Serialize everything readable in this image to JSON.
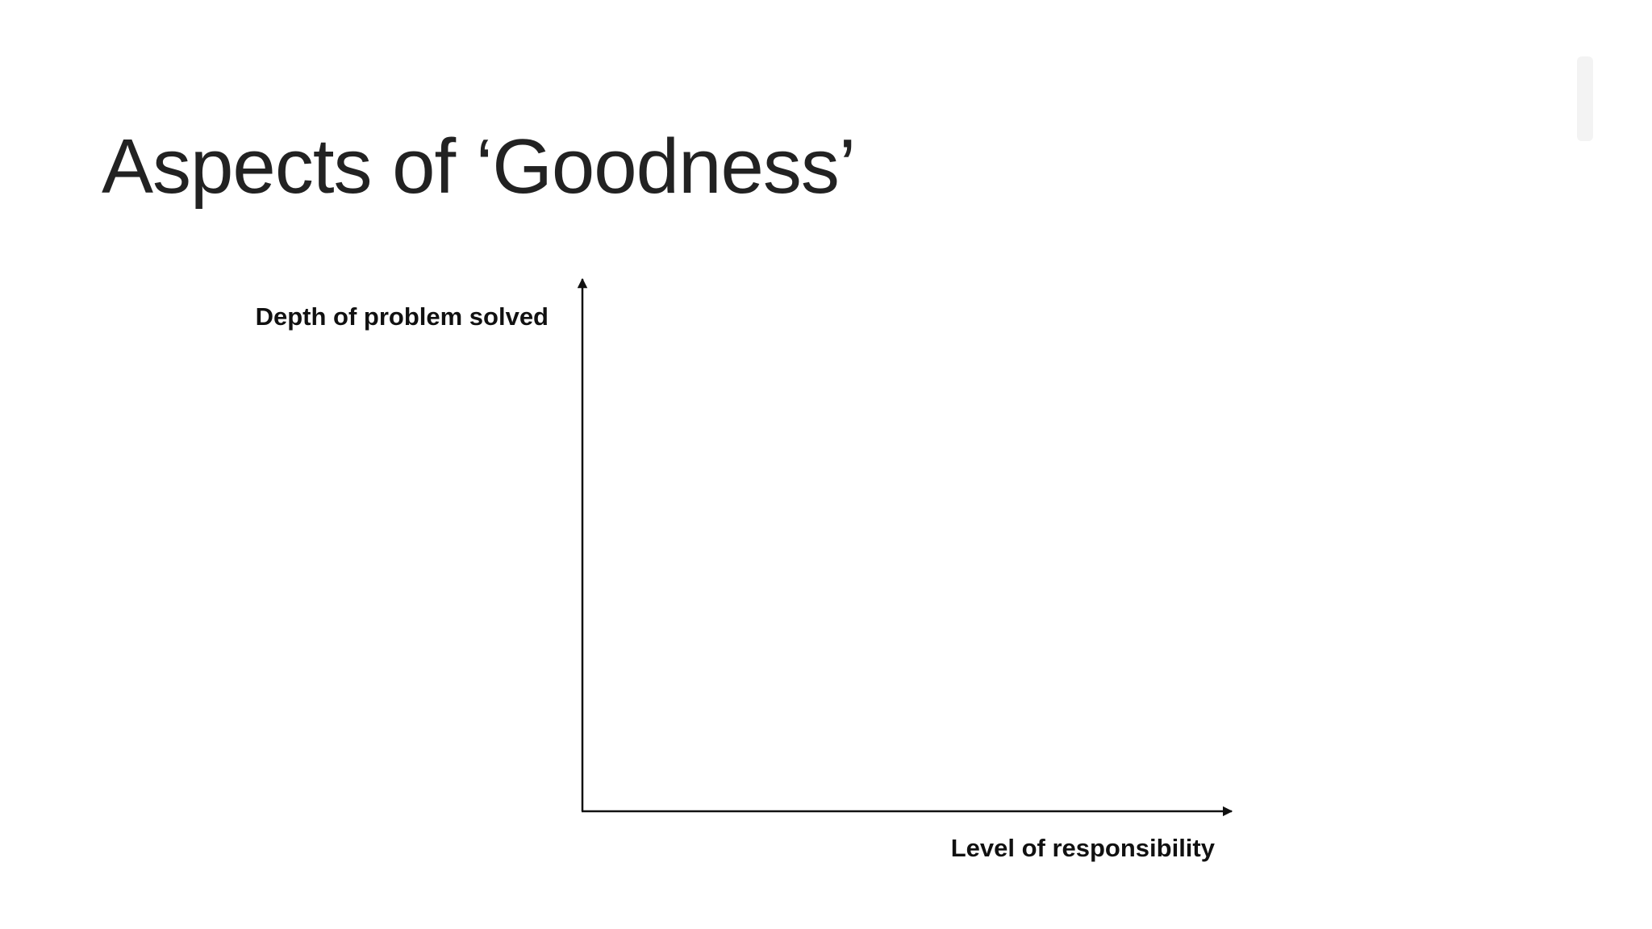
{
  "title": "Aspects of ‘Goodness’",
  "axes": {
    "y_label": "Depth of problem solved",
    "x_label": "Level of responsibility"
  }
}
